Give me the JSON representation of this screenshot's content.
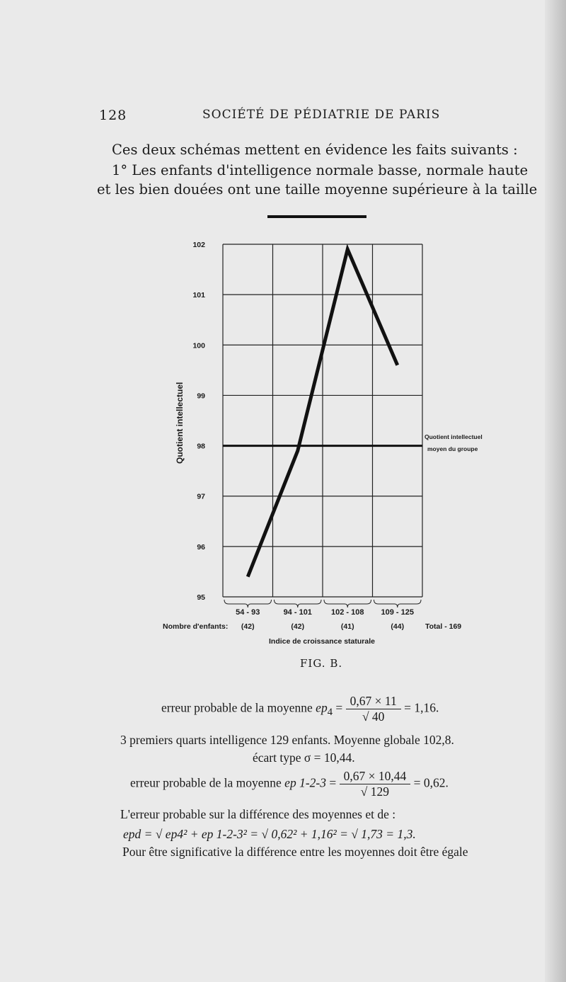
{
  "header": {
    "page_number": "128",
    "running_title": "SOCIÉTÉ DE PÉDIATRIE DE PARIS"
  },
  "paragraph": [
    "Ces deux schémas mettent en évidence les faits suivants :",
    "1° Les enfants d'intelligence normale basse, normale haute",
    "et les bien douées ont une taille moyenne supérieure à la taille"
  ],
  "chart_data": {
    "type": "line",
    "ylabel": "Quotient intellectuel",
    "xlabel": "Indice de croissance staturale",
    "ylim": [
      95,
      102
    ],
    "yticks": [
      "95",
      "96",
      "97",
      "98",
      "99",
      "100",
      "101",
      "102"
    ],
    "categories": [
      "54 - 93",
      "94 - 101",
      "102 - 108",
      "109 - 125"
    ],
    "counts_label": "Nombre d'enfants:",
    "counts": [
      "(42)",
      "(42)",
      "(41)",
      "(44)"
    ],
    "total": "Total - 169",
    "values": [
      95.4,
      97.9,
      101.9,
      99.6
    ],
    "reference_line": {
      "value": 98,
      "label": [
        "Quotient intellectuel",
        "moyen du groupe"
      ]
    },
    "grid": true
  },
  "caption": "FIG. B.",
  "formulas": {
    "f1_prefix": "erreur probable de la moyenne ",
    "f1_var": "ep",
    "f1_sub": "4",
    "f1_num": "0,67 × 11",
    "f1_den": "√ 40",
    "f1_res": "= 1,16.",
    "line2": "3 premiers quarts intelligence 129 enfants. Moyenne globale 102,8.",
    "line3": "écart type σ = 10,44.",
    "f2_prefix": "erreur probable de la moyenne ",
    "f2_var": "ep 1-2-3",
    "f2_num": "0,67 × 10,44",
    "f2_den": "√ 129",
    "f2_res": "= 0,62.",
    "line5": "L'erreur probable sur la différence des moyennes et de :",
    "line6": "epd = √ ep4² + ep 1-2-3² = √ 0,62² + 1,16² = √ 1,73 = 1,3.",
    "line7": "Pour être significative la différence entre les moyennes doit être égale"
  }
}
